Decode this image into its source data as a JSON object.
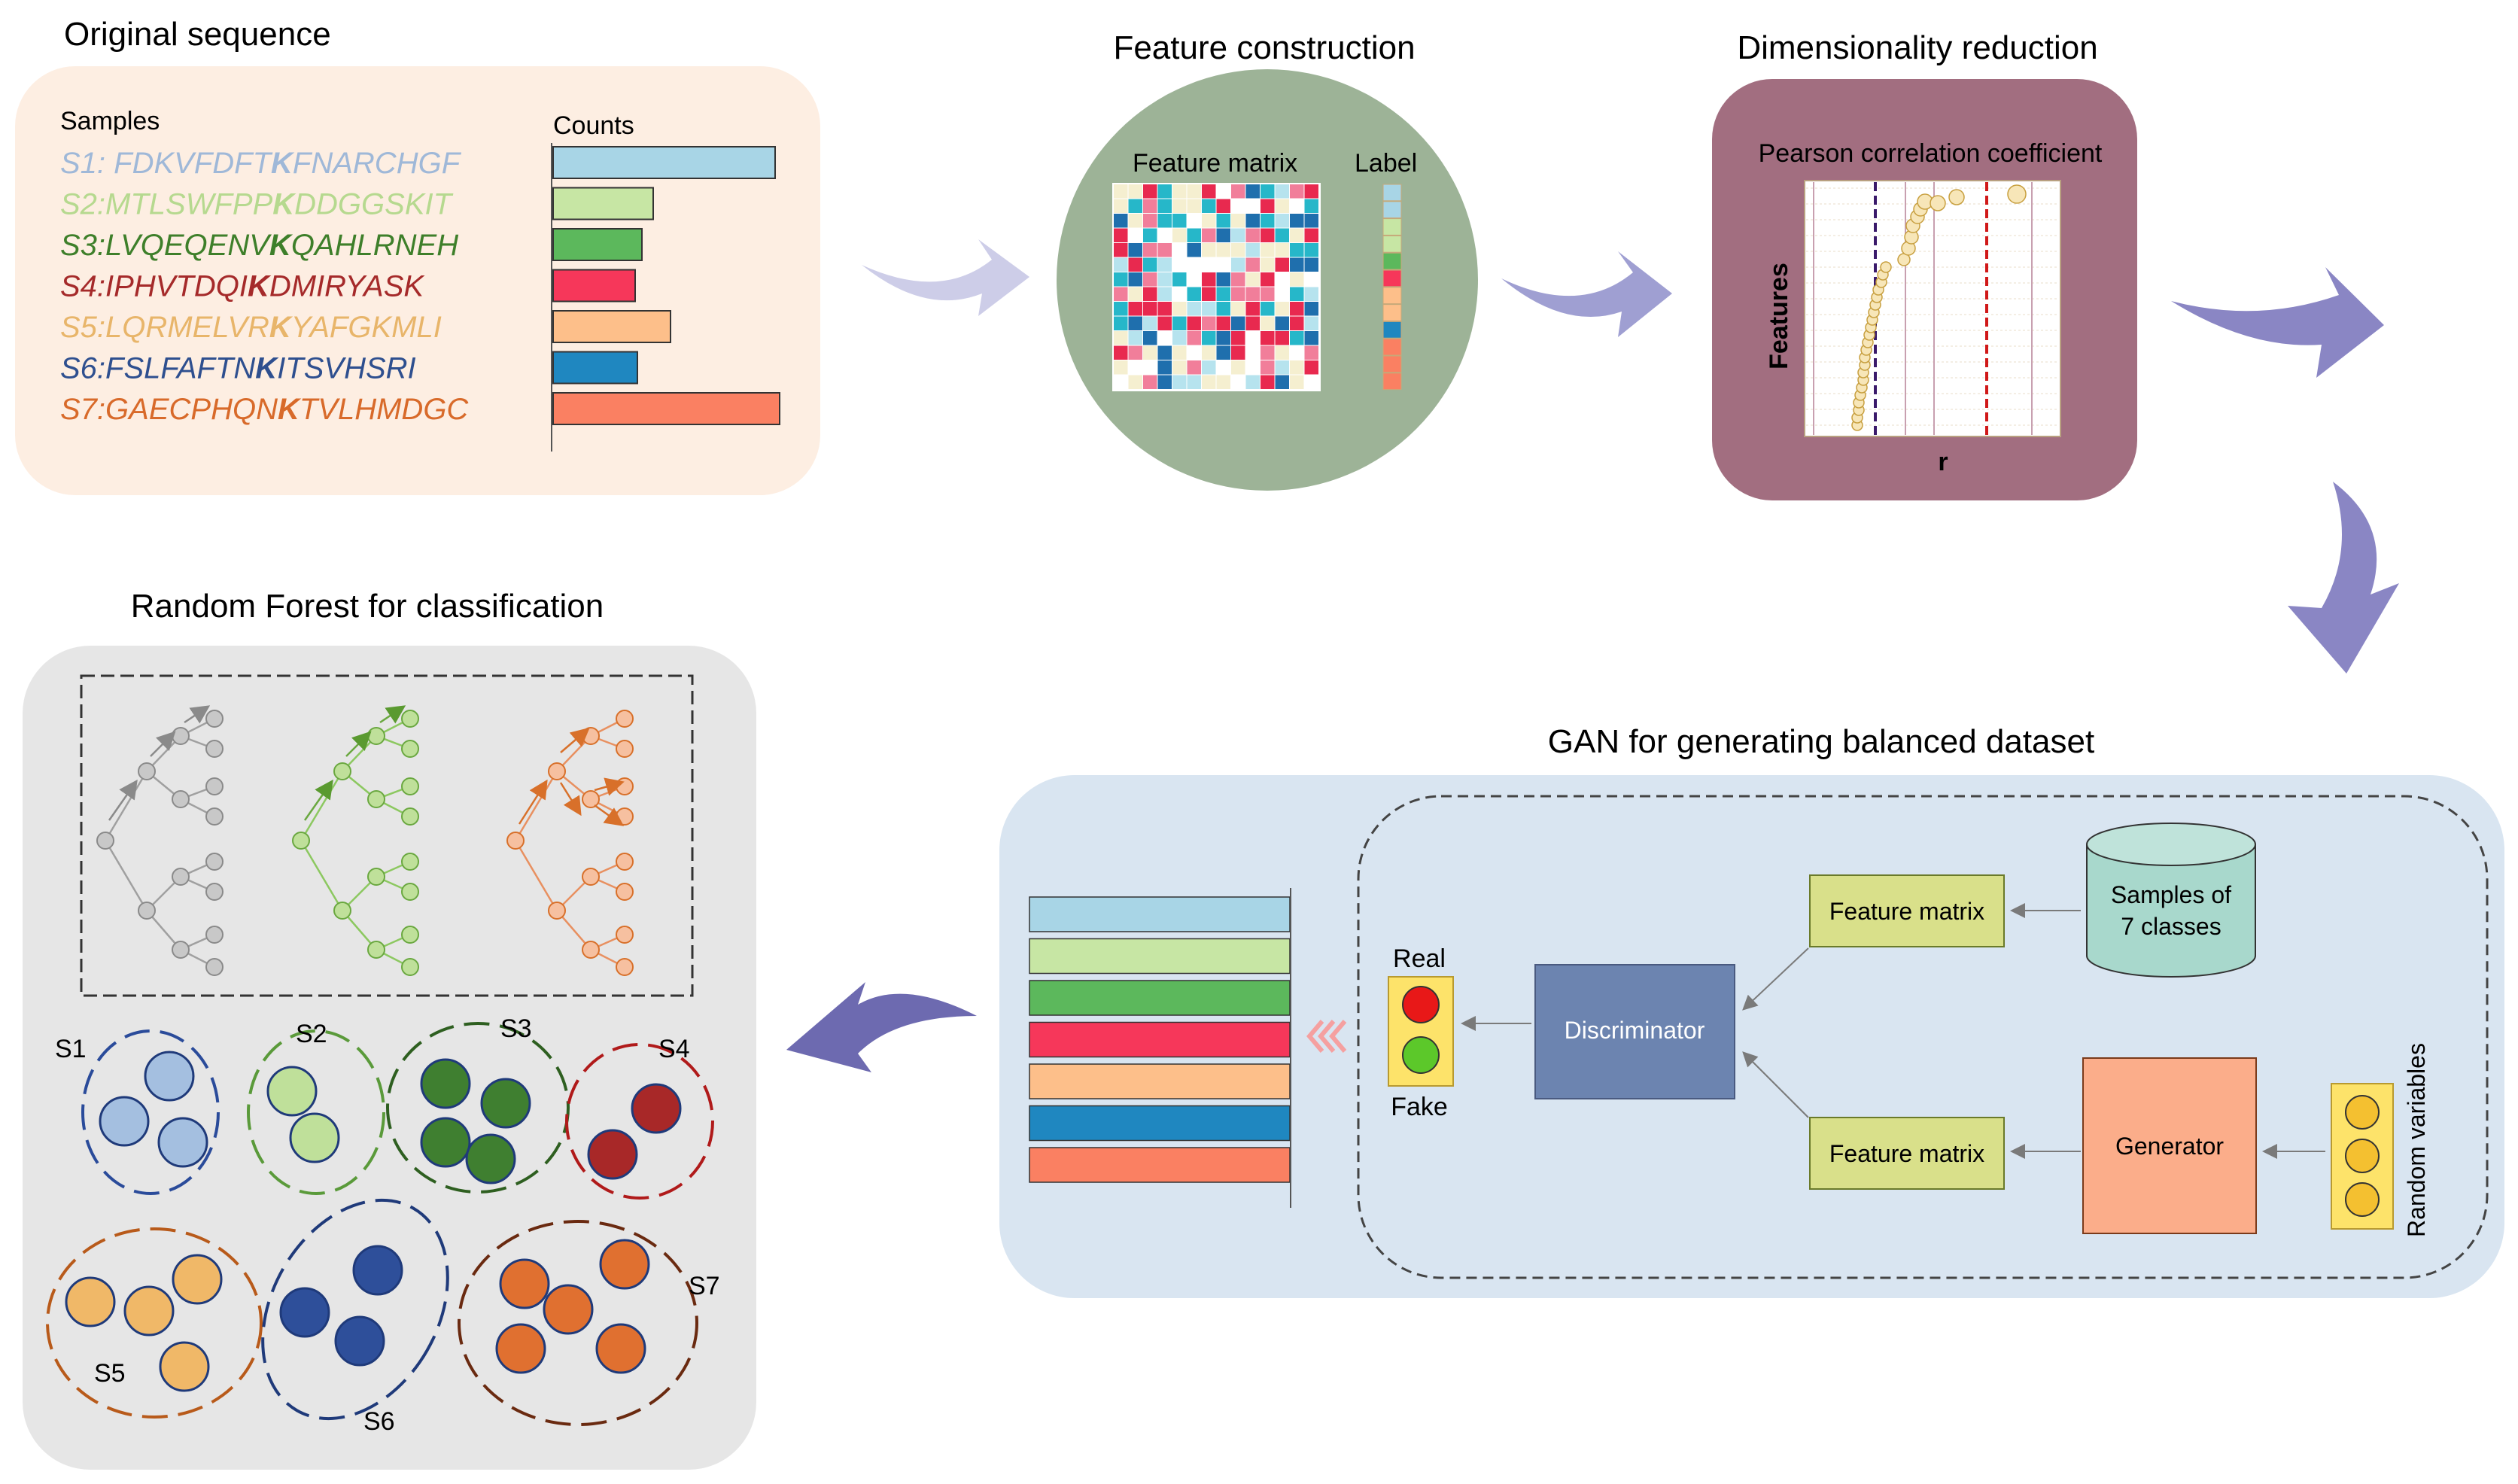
{
  "original_sequence": {
    "title": "Original sequence",
    "samples_label": "Samples",
    "counts_label": "Counts",
    "samples": [
      {
        "prefix": "S1: FDKVFDFT",
        "k": "K",
        "suffix": "FNARCHGF",
        "color": "#9fb8d8",
        "bar_color": "#a8d5e6",
        "count": 1.0
      },
      {
        "prefix": "S2:MTLSWFPP",
        "k": "K",
        "suffix": "DDGGSKIT",
        "color": "#b6d98f",
        "bar_color": "#c7e6a4",
        "count": 0.45
      },
      {
        "prefix": "S3:LVQEQENV",
        "k": "K",
        "suffix": "QAHLRNEH",
        "color": "#3e7f2a",
        "bar_color": "#5cb85c",
        "count": 0.4
      },
      {
        "prefix": "S4:IPHVTDQI",
        "k": "K",
        "suffix": "DMIRYASK",
        "color": "#a52a2a",
        "bar_color": "#f6375a",
        "count": 0.37
      },
      {
        "prefix": "S5:LQRMELVR",
        "k": "K",
        "suffix": "YAFGKMLI",
        "color": "#e8b56a",
        "bar_color": "#fdbf8a",
        "count": 0.53
      },
      {
        "prefix": "S6:FSLFAFTN",
        "k": "K",
        "suffix": "ITSVHSRI",
        "color": "#2e4f8f",
        "bar_color": "#1f87c0",
        "count": 0.38
      },
      {
        "prefix": "S7:GAECPHQN",
        "k": "K",
        "suffix": "TVLHMDGC",
        "color": "#d86a2a",
        "bar_color": "#fa8062",
        "count": 1.02
      }
    ]
  },
  "feature_construction": {
    "title": "Feature construction",
    "matrix_label": "Feature matrix",
    "label_label": "Label",
    "label_colors": [
      "#a8d5e6",
      "#a8d5e6",
      "#c7e6a4",
      "#c7e6a4",
      "#5cb85c",
      "#f6375a",
      "#fdbf8a",
      "#fdbf8a",
      "#1f87c0",
      "#fa8062",
      "#fa8062",
      "#fa8062"
    ],
    "palette": [
      "#e8294f",
      "#26b7c9",
      "#1f6fad",
      "#f5efd0",
      "#f17e9a",
      "#b6e3ee",
      "#ffffff"
    ]
  },
  "dimensionality_reduction": {
    "title": "Dimensionality reduction",
    "subtitle": "Pearson correlation coefficient",
    "ylabel": "Features",
    "xlabel": "r"
  },
  "gan": {
    "title": "GAN for generating balanced dataset",
    "real_label": "Real",
    "fake_label": "Fake",
    "discriminator_label": "Discriminator",
    "feature_matrix_top": "Feature matrix",
    "feature_matrix_bottom": "Feature matrix",
    "samples_line1": "Samples of",
    "samples_line2": "7 classes",
    "generator_label": "Generator",
    "random_variables_label": "Random variables",
    "output_bar_colors": [
      "#a8d5e6",
      "#c7e6a4",
      "#5cb85c",
      "#f6375a",
      "#fdbf8a",
      "#1f87c0",
      "#fa8062"
    ]
  },
  "random_forest": {
    "title": "Random Forest for classification",
    "clusters": [
      {
        "label": "S1",
        "fill": "#a4bfe0",
        "stroke": "#2a4b9a"
      },
      {
        "label": "S2",
        "fill": "#bfe09a",
        "stroke": "#5a9a3a"
      },
      {
        "label": "S3",
        "fill": "#3f7f30",
        "stroke": "#2e5f20"
      },
      {
        "label": "S4",
        "fill": "#a82828",
        "stroke": "#b01a1a"
      },
      {
        "label": "S5",
        "fill": "#f0b868",
        "stroke": "#b85a1a"
      },
      {
        "label": "S6",
        "fill": "#2e4f9a",
        "stroke": "#1f3a7a"
      },
      {
        "label": "S7",
        "fill": "#e07030",
        "stroke": "#6a2a10"
      }
    ],
    "tree_colors": [
      "#a0a0a0",
      "#8cc860",
      "#e89060"
    ]
  }
}
